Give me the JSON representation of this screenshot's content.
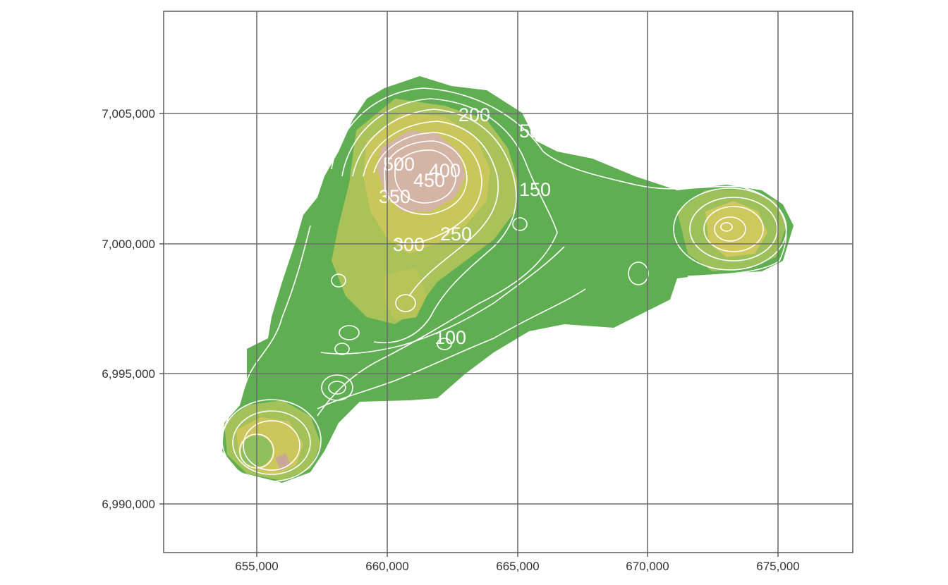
{
  "map": {
    "x_ticks": [
      "655,000",
      "660,000",
      "665,000",
      "670,000",
      "675,000"
    ],
    "y_ticks": [
      "7,005,000",
      "7,000,000",
      "6,995,000",
      "6,990,000"
    ],
    "contour_labels": [
      "50",
      "100",
      "150",
      "200",
      "250",
      "300",
      "350",
      "400",
      "450",
      "500"
    ],
    "colors": {
      "low": "#5fae52",
      "mid": "#c7c757",
      "high": "#d4b4a4",
      "contour": "#ffffff",
      "grid": "#6e6e6e"
    }
  }
}
